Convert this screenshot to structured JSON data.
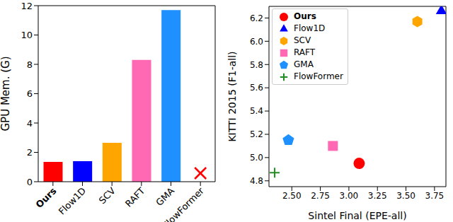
{
  "chart_data": [
    {
      "type": "bar",
      "ylabel": "GPU Mem. (G)",
      "categories": [
        "Ours",
        "Flow1D",
        "SCV",
        "RAFT",
        "GMA",
        "FlowFormer"
      ],
      "values": [
        1.35,
        1.4,
        2.65,
        8.3,
        11.7,
        null
      ],
      "colors": [
        "#ff0000",
        "#0000ff",
        "#ffa500",
        "#ff69b4",
        "#1e90ff",
        "#ff0000"
      ],
      "ylim": [
        0,
        12
      ],
      "yticks": [
        0,
        2,
        4,
        6,
        8,
        10,
        12
      ],
      "grid": false
    },
    {
      "type": "scatter",
      "xlabel": "Sintel Final (EPE-all)",
      "ylabel": "KITTI 2015 (F1-all)",
      "series": [
        {
          "name": "Ours",
          "color": "#ff0000",
          "marker": "circle",
          "x": [
            3.09
          ],
          "values": [
            4.95
          ]
        },
        {
          "name": "Flow1D",
          "color": "#0000ff",
          "marker": "triangle",
          "x": [
            3.81
          ],
          "values": [
            6.26
          ]
        },
        {
          "name": "SCV",
          "color": "#ffa500",
          "marker": "hexagon",
          "x": [
            3.6
          ],
          "values": [
            6.17
          ]
        },
        {
          "name": "RAFT",
          "color": "#ff69b4",
          "marker": "square",
          "x": [
            2.86
          ],
          "values": [
            5.1
          ]
        },
        {
          "name": "GMA",
          "color": "#1e90ff",
          "marker": "pentagon",
          "x": [
            2.47
          ],
          "values": [
            5.15
          ]
        },
        {
          "name": "FlowFormer",
          "color": "#228b22",
          "marker": "plus",
          "x": [
            2.35
          ],
          "values": [
            4.87
          ]
        }
      ],
      "xlim": [
        2.3,
        3.85
      ],
      "xticks": [
        {
          "value": 2.5,
          "label": "2.50"
        },
        2.75,
        {
          "value": 3,
          "label": "3.00"
        },
        3.25,
        {
          "value": 3.5,
          "label": "3.50"
        },
        3.75
      ],
      "ylim": [
        4.75,
        6.3
      ],
      "yticks": [
        4.8,
        {
          "value": 5,
          "label": "5.0"
        },
        5.2,
        5.4,
        5.6,
        5.8,
        {
          "value": 6,
          "label": "6.0"
        },
        6.2
      ],
      "legend": "upper left",
      "grid": false
    }
  ]
}
